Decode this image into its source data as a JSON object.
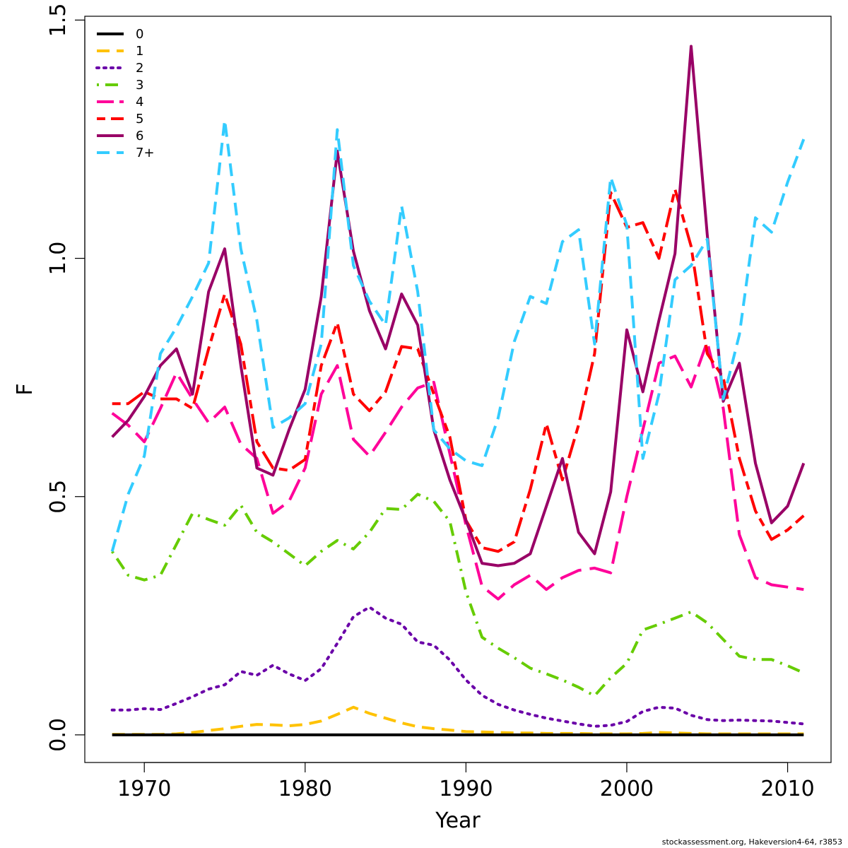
{
  "chart_data": {
    "type": "line",
    "xlabel": "Year",
    "ylabel": "F",
    "xlim": [
      1966.3,
      2012.7
    ],
    "ylim": [
      -0.058,
      1.508
    ],
    "x_ticks": [
      1970,
      1980,
      1990,
      2000,
      2010
    ],
    "y_ticks": [
      0.0,
      0.5,
      1.0,
      1.5
    ],
    "y_tick_labels": [
      "0.0",
      "0.5",
      "1.0",
      "1.5"
    ],
    "grid": false,
    "legend_position": "top-left",
    "x": [
      1968,
      1969,
      1970,
      1971,
      1972,
      1973,
      1974,
      1975,
      1976,
      1977,
      1978,
      1979,
      1980,
      1981,
      1982,
      1983,
      1984,
      1985,
      1986,
      1987,
      1988,
      1989,
      1990,
      1991,
      1992,
      1993,
      1994,
      1995,
      1996,
      1997,
      1998,
      1999,
      2000,
      2001,
      2002,
      2003,
      2004,
      2005,
      2006,
      2007,
      2008,
      2009,
      2010,
      2011
    ],
    "series": [
      {
        "name": "0",
        "color": "#000000",
        "dash": "solid",
        "values": [
          0,
          0,
          0,
          0,
          0,
          0,
          0,
          0,
          0,
          0,
          0,
          0,
          0,
          0,
          0,
          0,
          0,
          0,
          0,
          0,
          0,
          0,
          0,
          0,
          0,
          0,
          0,
          0,
          0,
          0,
          0,
          0,
          0,
          0,
          0,
          0,
          0,
          0,
          0,
          0,
          0,
          0,
          0,
          0
        ]
      },
      {
        "name": "1",
        "color": "#FFC200",
        "dash": "dashed",
        "values": [
          0.001,
          0.001,
          0.001,
          0.001,
          0.002,
          0.005,
          0.009,
          0.013,
          0.018,
          0.022,
          0.021,
          0.019,
          0.022,
          0.029,
          0.043,
          0.058,
          0.045,
          0.035,
          0.025,
          0.017,
          0.013,
          0.01,
          0.007,
          0.006,
          0.005,
          0.004,
          0.004,
          0.003,
          0.003,
          0.003,
          0.002,
          0.002,
          0.002,
          0.003,
          0.005,
          0.004,
          0.003,
          0.002,
          0.002,
          0.002,
          0.002,
          0.002,
          0.002,
          0.002
        ]
      },
      {
        "name": "2",
        "color": "#6A00A8",
        "dash": "dotted",
        "values": [
          0.052,
          0.052,
          0.055,
          0.053,
          0.066,
          0.08,
          0.096,
          0.105,
          0.133,
          0.125,
          0.146,
          0.128,
          0.114,
          0.139,
          0.192,
          0.248,
          0.268,
          0.245,
          0.232,
          0.195,
          0.188,
          0.157,
          0.115,
          0.083,
          0.064,
          0.052,
          0.043,
          0.035,
          0.029,
          0.023,
          0.018,
          0.02,
          0.028,
          0.049,
          0.058,
          0.056,
          0.041,
          0.032,
          0.03,
          0.031,
          0.03,
          0.029,
          0.026,
          0.023
        ]
      },
      {
        "name": "3",
        "color": "#66CC00",
        "dash": "dotdash",
        "values": [
          0.385,
          0.335,
          0.325,
          0.335,
          0.4,
          0.465,
          0.452,
          0.44,
          0.482,
          0.425,
          0.405,
          0.38,
          0.355,
          0.385,
          0.408,
          0.39,
          0.425,
          0.475,
          0.473,
          0.505,
          0.49,
          0.448,
          0.3,
          0.205,
          0.182,
          0.162,
          0.14,
          0.128,
          0.115,
          0.1,
          0.082,
          0.12,
          0.15,
          0.22,
          0.232,
          0.245,
          0.258,
          0.235,
          0.2,
          0.165,
          0.158,
          0.158,
          0.145,
          0.13
        ]
      },
      {
        "name": "4",
        "color": "#FF0099",
        "dash": "longdash",
        "values": [
          0.675,
          0.65,
          0.615,
          0.685,
          0.76,
          0.705,
          0.655,
          0.688,
          0.61,
          0.58,
          0.465,
          0.49,
          0.56,
          0.715,
          0.775,
          0.62,
          0.585,
          0.635,
          0.688,
          0.728,
          0.74,
          0.59,
          0.44,
          0.312,
          0.285,
          0.315,
          0.335,
          0.305,
          0.33,
          0.345,
          0.35,
          0.34,
          0.5,
          0.64,
          0.78,
          0.795,
          0.73,
          0.825,
          0.685,
          0.42,
          0.33,
          0.315,
          0.31,
          0.305
        ]
      },
      {
        "name": "5",
        "color": "#FF0000",
        "dash": "twodash",
        "values": [
          0.695,
          0.695,
          0.72,
          0.705,
          0.705,
          0.685,
          0.81,
          0.925,
          0.82,
          0.615,
          0.56,
          0.555,
          0.578,
          0.775,
          0.865,
          0.715,
          0.68,
          0.72,
          0.815,
          0.81,
          0.715,
          0.625,
          0.45,
          0.393,
          0.385,
          0.405,
          0.515,
          0.653,
          0.535,
          0.65,
          0.8,
          1.138,
          1.065,
          1.075,
          1.0,
          1.145,
          1.025,
          0.8,
          0.75,
          0.58,
          0.47,
          0.41,
          0.43,
          0.46
        ]
      },
      {
        "name": "6",
        "color": "#990066",
        "dash": "solid",
        "values": [
          0.625,
          0.66,
          0.71,
          0.775,
          0.81,
          0.715,
          0.93,
          1.02,
          0.775,
          0.56,
          0.545,
          0.64,
          0.725,
          0.92,
          1.225,
          1.015,
          0.89,
          0.81,
          0.925,
          0.86,
          0.64,
          0.535,
          0.45,
          0.36,
          0.355,
          0.36,
          0.38,
          0.48,
          0.58,
          0.425,
          0.38,
          0.51,
          0.85,
          0.72,
          0.87,
          1.01,
          1.445,
          1.05,
          0.7,
          0.78,
          0.57,
          0.445,
          0.48,
          0.57
        ]
      },
      {
        "name": "7+",
        "color": "#33CCFF",
        "dash": "dashed",
        "values": [
          0.385,
          0.505,
          0.585,
          0.8,
          0.855,
          0.92,
          0.99,
          1.29,
          1.02,
          0.87,
          0.645,
          0.665,
          0.695,
          0.82,
          1.27,
          0.985,
          0.91,
          0.86,
          1.11,
          0.93,
          0.64,
          0.6,
          0.575,
          0.565,
          0.665,
          0.825,
          0.92,
          0.905,
          1.035,
          1.06,
          0.82,
          1.17,
          1.07,
          0.58,
          0.715,
          0.955,
          0.985,
          1.04,
          0.705,
          0.84,
          1.085,
          1.055,
          1.16,
          1.25
        ]
      }
    ]
  },
  "caption": "stockassessment.org, Hakeversion4-64, r3853"
}
